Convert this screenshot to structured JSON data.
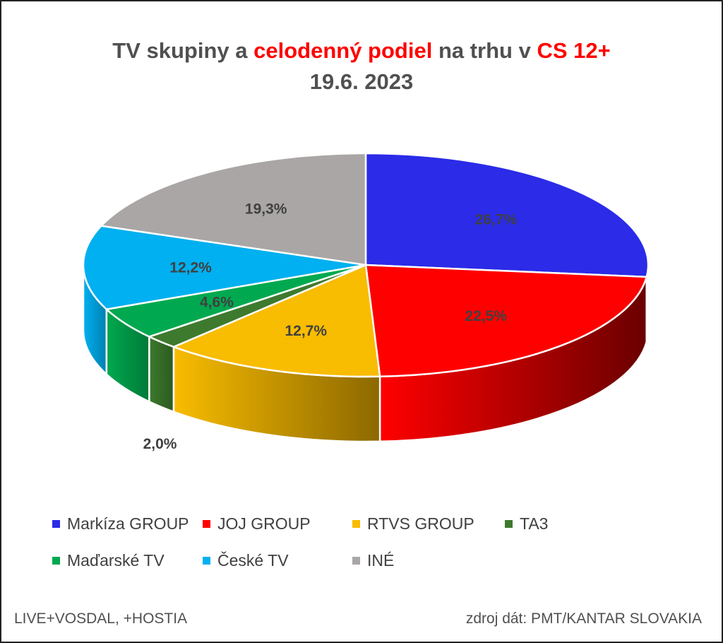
{
  "title": {
    "part1": "TV skupiny a ",
    "part2": "celodenný podiel",
    "part3": " na trhu v ",
    "part4": "CS 12+",
    "line2": "19.6. 2023"
  },
  "footer": {
    "left": "LIVE+VOSDAL,  +HOSTIA",
    "right": "zdroj dát: PMT/KANTAR SLOVAKIA"
  },
  "chart_data": {
    "type": "pie",
    "style": "3d",
    "title": "TV skupiny a celodenný podiel na trhu v CS 12+ 19.6. 2023",
    "start_angle_deg": 0,
    "direction": "clockwise",
    "legend_position": "bottom",
    "slices": [
      {
        "name": "Markíza GROUP",
        "value": 26.7,
        "label": "26,7%",
        "color": "#2b2be8",
        "side_color": "#1a1a8a"
      },
      {
        "name": "JOJ GROUP",
        "value": 22.5,
        "label": "22,5%",
        "color": "#ff0000",
        "side_color": "#6a0000"
      },
      {
        "name": "RTVS GROUP",
        "value": 12.7,
        "label": "12,7%",
        "color": "#f8bc00",
        "side_color": "#8c6800"
      },
      {
        "name": "TA3",
        "value": 2.0,
        "label": "2,0%",
        "color": "#3d7a2e",
        "side_color": "#2b5a20"
      },
      {
        "name": "Maďarské  TV",
        "value": 4.6,
        "label": "4,6%",
        "color": "#00a94f",
        "side_color": "#007a38"
      },
      {
        "name": "České  TV",
        "value": 12.2,
        "label": "12,2%",
        "color": "#00b0f0",
        "side_color": "#0080b0"
      },
      {
        "name": "INÉ",
        "value": 19.3,
        "label": "19,3%",
        "color": "#aaa6a6",
        "side_color": "#6e6a6a"
      }
    ]
  }
}
